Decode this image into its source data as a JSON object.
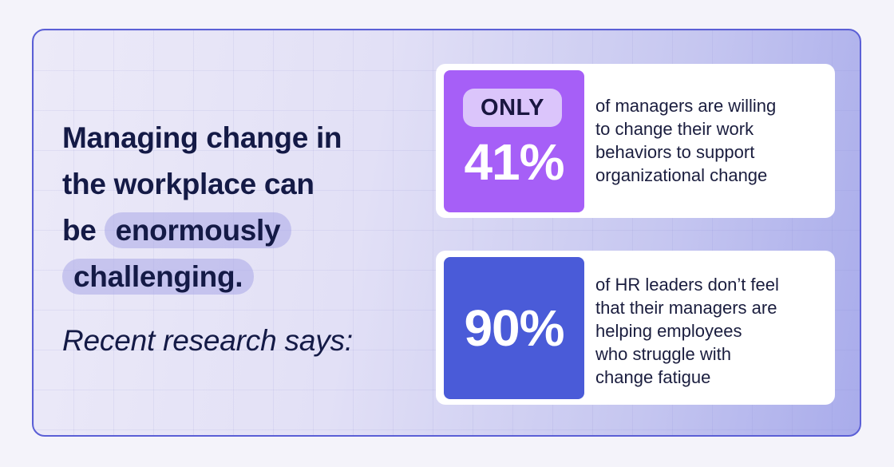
{
  "headline": {
    "line1": "Managing change in",
    "line2": "the workplace can",
    "line3_prefix": "be",
    "highlight1": "enormously",
    "highlight2": "challenging."
  },
  "subheading": "Recent research says:",
  "stats": [
    {
      "badge": "ONLY",
      "value": "41%",
      "lines": [
        "of managers are willing",
        "to change their work",
        "behaviors to support",
        "organizational change"
      ],
      "color": "#a65ff7"
    },
    {
      "value": "90%",
      "lines": [
        "of HR leaders don’t feel",
        "that their managers are",
        "helping employees",
        "who struggle with",
        "change fatigue"
      ],
      "color": "#4a5bd8"
    }
  ],
  "colors": {
    "headline": "#141a46",
    "border": "#5b5fd6",
    "highlight": "#aaa8e8"
  }
}
